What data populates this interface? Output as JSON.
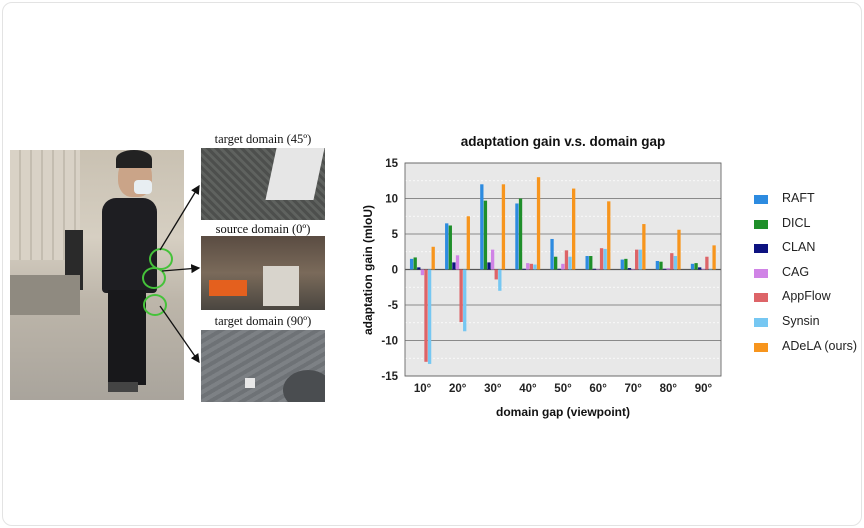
{
  "captions": {
    "target45": "target domain (45º)",
    "source": "source domain (0º)",
    "target90": "target domain (90º)"
  },
  "chart_data": {
    "type": "bar",
    "title": "adaptation gain v.s. domain gap",
    "xlabel": "domain gap (viewpoint)",
    "ylabel": "adaptation gain (mIoU)",
    "ylim": [
      -15,
      15
    ],
    "yticks": [
      -15,
      -10,
      -5,
      0,
      5,
      10,
      15
    ],
    "grid": true,
    "legend_position": "right",
    "categories": [
      "10°",
      "20°",
      "30°",
      "40°",
      "50°",
      "60°",
      "70°",
      "80°",
      "90°"
    ],
    "series": [
      {
        "name": "RAFT",
        "color": "#2d8be0",
        "values": [
          1.5,
          6.5,
          12.0,
          9.3,
          4.3,
          1.9,
          1.4,
          1.2,
          0.8
        ]
      },
      {
        "name": "DICL",
        "color": "#1f8f2a",
        "values": [
          1.7,
          6.2,
          9.7,
          10.0,
          1.8,
          1.9,
          1.5,
          1.1,
          0.9
        ]
      },
      {
        "name": "CLAN",
        "color": "#0d1280",
        "values": [
          0.3,
          1.0,
          1.0,
          0.1,
          0.1,
          0.1,
          0.2,
          0.1,
          0.3
        ]
      },
      {
        "name": "CAG",
        "color": "#d083e6",
        "values": [
          -0.8,
          2.0,
          2.8,
          0.9,
          0.8,
          0.1,
          0.0,
          0.2,
          0.1
        ]
      },
      {
        "name": "AppFlow",
        "color": "#dd6468",
        "values": [
          -13.0,
          -7.4,
          -1.4,
          0.8,
          2.7,
          3.0,
          2.8,
          2.3,
          1.8
        ]
      },
      {
        "name": "Synsin",
        "color": "#76c7f2",
        "values": [
          -13.3,
          -8.7,
          -3.0,
          0.7,
          1.8,
          2.9,
          2.8,
          1.9,
          0.1
        ]
      },
      {
        "name": "ADeLA (ours)",
        "color": "#f7951d",
        "values": [
          3.2,
          7.5,
          12.0,
          13.0,
          11.4,
          9.6,
          6.4,
          5.6,
          3.4
        ]
      }
    ]
  }
}
